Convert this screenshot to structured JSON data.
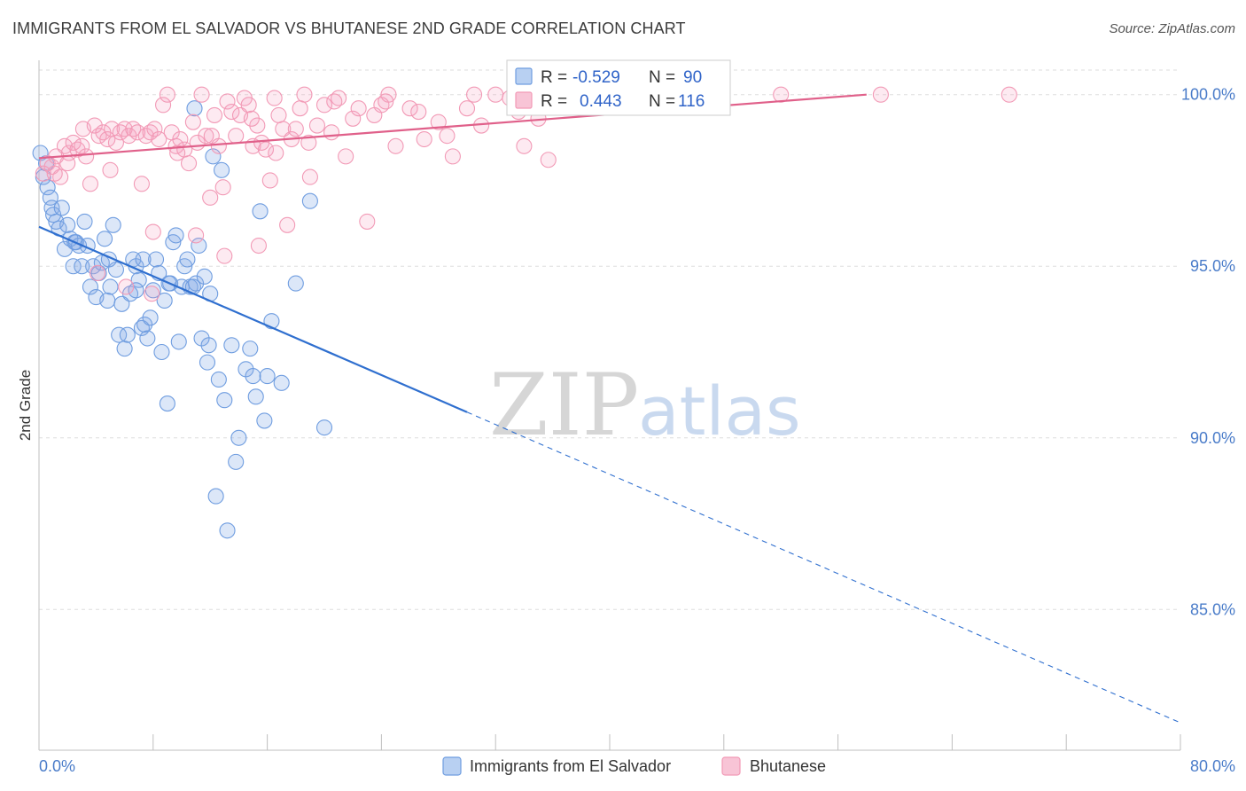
{
  "header": {
    "title": "IMMIGRANTS FROM EL SALVADOR VS BHUTANESE 2ND GRADE CORRELATION CHART",
    "source": "Source: ZipAtlas.com"
  },
  "watermark": {
    "zip": "ZIP",
    "atlas": "atlas"
  },
  "colors": {
    "blue": "#6f9de0",
    "blue_line": "#2f6fcf",
    "pink": "#f29ab6",
    "pink_line": "#e0608a",
    "tick_label": "#4a7cc9",
    "grid": "#dddddd"
  },
  "stats_box": {
    "rows": [
      {
        "r_label": "R =",
        "r_value": "-0.529",
        "n_label": "N =",
        "n_value": "90"
      },
      {
        "r_label": "R =",
        "r_value": "0.443",
        "n_label": "N =",
        "n_value": "116"
      }
    ]
  },
  "legend": {
    "items": [
      {
        "label": "Immigrants from El Salvador"
      },
      {
        "label": "Bhutanese"
      }
    ]
  },
  "chart_data": {
    "type": "scatter",
    "title": "IMMIGRANTS FROM EL SALVADOR VS BHUTANESE 2ND GRADE CORRELATION CHART",
    "xlabel": "",
    "ylabel": "2nd Grade",
    "xlim": [
      0,
      80
    ],
    "ylim": [
      80.9,
      101.0
    ],
    "x_tick_labels": [
      "0.0%",
      "80.0%"
    ],
    "y_ticks": [
      85,
      90,
      95,
      100
    ],
    "y_tick_labels": [
      "85.0%",
      "90.0%",
      "95.0%",
      "100.0%"
    ],
    "grid": true,
    "legend_position": "bottom",
    "series": [
      {
        "name": "Immigrants from El Salvador",
        "color": "#6f9de0",
        "r": -0.529,
        "n": 90,
        "trend": {
          "x0": 0,
          "y0": 96.15,
          "x1": 30.0,
          "y1": 90.75,
          "dashed_to_x": 80,
          "dashed_to_y": 81.7
        },
        "points": [
          [
            0.1,
            98.3
          ],
          [
            0.3,
            97.6
          ],
          [
            0.5,
            98.0
          ],
          [
            0.6,
            97.3
          ],
          [
            0.8,
            97.0
          ],
          [
            0.9,
            96.7
          ],
          [
            1.0,
            96.5
          ],
          [
            1.2,
            96.3
          ],
          [
            1.4,
            96.1
          ],
          [
            1.6,
            96.7
          ],
          [
            1.8,
            95.5
          ],
          [
            2.0,
            96.2
          ],
          [
            2.2,
            95.8
          ],
          [
            2.4,
            95.0
          ],
          [
            2.6,
            95.7
          ],
          [
            2.8,
            95.6
          ],
          [
            3.0,
            95.0
          ],
          [
            3.2,
            96.3
          ],
          [
            3.4,
            95.6
          ],
          [
            3.6,
            94.4
          ],
          [
            3.8,
            95.0
          ],
          [
            4.0,
            94.1
          ],
          [
            4.2,
            94.8
          ],
          [
            4.4,
            95.1
          ],
          [
            4.6,
            95.8
          ],
          [
            4.8,
            94.0
          ],
          [
            5.0,
            94.4
          ],
          [
            5.2,
            96.2
          ],
          [
            5.4,
            94.9
          ],
          [
            5.6,
            93.0
          ],
          [
            5.8,
            93.9
          ],
          [
            6.0,
            92.6
          ],
          [
            6.2,
            93.0
          ],
          [
            6.4,
            94.2
          ],
          [
            6.6,
            95.2
          ],
          [
            6.8,
            95.0
          ],
          [
            7.0,
            94.6
          ],
          [
            7.2,
            93.2
          ],
          [
            7.4,
            93.3
          ],
          [
            7.6,
            92.9
          ],
          [
            7.8,
            93.5
          ],
          [
            8.0,
            94.3
          ],
          [
            8.2,
            95.2
          ],
          [
            8.4,
            94.8
          ],
          [
            8.6,
            92.5
          ],
          [
            8.8,
            94.0
          ],
          [
            9.0,
            91.0
          ],
          [
            9.2,
            94.5
          ],
          [
            9.4,
            95.7
          ],
          [
            9.6,
            95.9
          ],
          [
            9.8,
            92.8
          ],
          [
            10.0,
            94.4
          ],
          [
            10.2,
            95.0
          ],
          [
            10.4,
            95.2
          ],
          [
            10.6,
            94.4
          ],
          [
            10.8,
            94.4
          ],
          [
            11.0,
            94.5
          ],
          [
            11.2,
            95.6
          ],
          [
            11.4,
            92.9
          ],
          [
            11.6,
            94.7
          ],
          [
            11.8,
            92.2
          ],
          [
            12.0,
            94.2
          ],
          [
            12.2,
            98.2
          ],
          [
            12.4,
            88.3
          ],
          [
            12.6,
            91.7
          ],
          [
            12.8,
            97.8
          ],
          [
            13.0,
            91.1
          ],
          [
            13.2,
            87.3
          ],
          [
            13.5,
            92.7
          ],
          [
            13.8,
            89.3
          ],
          [
            14.0,
            90.0
          ],
          [
            14.5,
            92.0
          ],
          [
            14.8,
            92.6
          ],
          [
            15.0,
            91.8
          ],
          [
            15.2,
            91.2
          ],
          [
            15.5,
            96.6
          ],
          [
            15.8,
            90.5
          ],
          [
            16.0,
            91.8
          ],
          [
            16.3,
            93.4
          ],
          [
            17.0,
            91.6
          ],
          [
            18.0,
            94.5
          ],
          [
            19.0,
            96.9
          ],
          [
            20.0,
            90.3
          ],
          [
            6.8,
            94.3
          ],
          [
            9.1,
            94.5
          ],
          [
            11.9,
            92.7
          ],
          [
            4.9,
            95.2
          ],
          [
            7.3,
            95.2
          ],
          [
            10.9,
            99.6
          ],
          [
            2.5,
            95.7
          ]
        ]
      },
      {
        "name": "Bhutanese",
        "color": "#f29ab6",
        "r": 0.443,
        "n": 116,
        "trend": {
          "x0": 0,
          "y0": 98.15,
          "x1": 58.0,
          "y1": 100.0
        },
        "points": [
          [
            0.3,
            97.7
          ],
          [
            0.6,
            98.0
          ],
          [
            0.9,
            97.9
          ],
          [
            1.2,
            98.2
          ],
          [
            1.5,
            97.6
          ],
          [
            1.8,
            98.5
          ],
          [
            2.1,
            98.3
          ],
          [
            2.4,
            98.6
          ],
          [
            2.7,
            98.4
          ],
          [
            3.0,
            98.5
          ],
          [
            3.3,
            98.2
          ],
          [
            3.6,
            97.4
          ],
          [
            3.9,
            99.1
          ],
          [
            4.2,
            98.8
          ],
          [
            4.5,
            98.9
          ],
          [
            4.8,
            98.7
          ],
          [
            5.1,
            99.0
          ],
          [
            5.4,
            98.6
          ],
          [
            5.7,
            98.9
          ],
          [
            6.0,
            99.0
          ],
          [
            6.3,
            98.8
          ],
          [
            6.6,
            99.0
          ],
          [
            6.9,
            98.9
          ],
          [
            7.2,
            97.4
          ],
          [
            7.5,
            98.8
          ],
          [
            7.8,
            98.9
          ],
          [
            8.1,
            99.0
          ],
          [
            8.4,
            98.7
          ],
          [
            8.7,
            99.7
          ],
          [
            9.0,
            100.0
          ],
          [
            9.3,
            98.9
          ],
          [
            9.6,
            98.5
          ],
          [
            9.9,
            98.7
          ],
          [
            10.2,
            98.4
          ],
          [
            10.5,
            98.0
          ],
          [
            10.8,
            99.2
          ],
          [
            11.1,
            98.6
          ],
          [
            11.4,
            100.0
          ],
          [
            11.7,
            98.8
          ],
          [
            12.0,
            97.0
          ],
          [
            12.3,
            99.4
          ],
          [
            12.6,
            98.5
          ],
          [
            12.9,
            97.3
          ],
          [
            13.2,
            99.8
          ],
          [
            13.5,
            99.5
          ],
          [
            13.8,
            98.8
          ],
          [
            14.1,
            99.4
          ],
          [
            14.4,
            99.9
          ],
          [
            14.7,
            99.7
          ],
          [
            15.0,
            98.5
          ],
          [
            15.3,
            99.1
          ],
          [
            15.6,
            98.6
          ],
          [
            15.9,
            98.4
          ],
          [
            16.2,
            97.5
          ],
          [
            16.5,
            99.9
          ],
          [
            16.8,
            99.4
          ],
          [
            17.1,
            99.0
          ],
          [
            17.4,
            96.2
          ],
          [
            17.7,
            98.7
          ],
          [
            18.0,
            99.0
          ],
          [
            18.3,
            99.6
          ],
          [
            18.6,
            100.0
          ],
          [
            19.0,
            97.6
          ],
          [
            19.5,
            99.1
          ],
          [
            20.0,
            99.7
          ],
          [
            20.5,
            98.9
          ],
          [
            21.0,
            99.9
          ],
          [
            21.5,
            98.2
          ],
          [
            22.0,
            99.3
          ],
          [
            23.0,
            96.3
          ],
          [
            23.5,
            99.4
          ],
          [
            24.0,
            99.7
          ],
          [
            24.5,
            100.0
          ],
          [
            25.0,
            98.5
          ],
          [
            26.0,
            99.6
          ],
          [
            27.0,
            98.7
          ],
          [
            28.0,
            99.2
          ],
          [
            29.0,
            98.2
          ],
          [
            30.0,
            99.6
          ],
          [
            31.0,
            99.1
          ],
          [
            32.0,
            100.0
          ],
          [
            33.0,
            99.9
          ],
          [
            34.0,
            98.5
          ],
          [
            35.0,
            99.3
          ],
          [
            36.0,
            100.0
          ],
          [
            37.0,
            100.0
          ],
          [
            38.0,
            100.0
          ],
          [
            40.0,
            99.9
          ],
          [
            44.0,
            100.0
          ],
          [
            52.0,
            100.0
          ],
          [
            59.0,
            100.0
          ],
          [
            68.0,
            100.0
          ],
          [
            2.0,
            98.0
          ],
          [
            5.0,
            97.8
          ],
          [
            8.0,
            96.0
          ],
          [
            11.0,
            95.9
          ],
          [
            13.0,
            95.3
          ],
          [
            15.4,
            95.6
          ],
          [
            16.6,
            98.3
          ],
          [
            18.9,
            98.6
          ],
          [
            20.7,
            99.8
          ],
          [
            22.4,
            99.6
          ],
          [
            24.3,
            99.8
          ],
          [
            26.6,
            99.5
          ],
          [
            28.6,
            98.8
          ],
          [
            30.5,
            100.0
          ],
          [
            33.6,
            99.5
          ],
          [
            35.7,
            98.1
          ],
          [
            4.1,
            94.8
          ],
          [
            6.1,
            94.4
          ],
          [
            7.9,
            94.2
          ],
          [
            1.1,
            97.7
          ],
          [
            3.1,
            99.0
          ],
          [
            9.7,
            98.3
          ],
          [
            12.1,
            98.8
          ],
          [
            14.9,
            99.3
          ]
        ]
      }
    ]
  }
}
